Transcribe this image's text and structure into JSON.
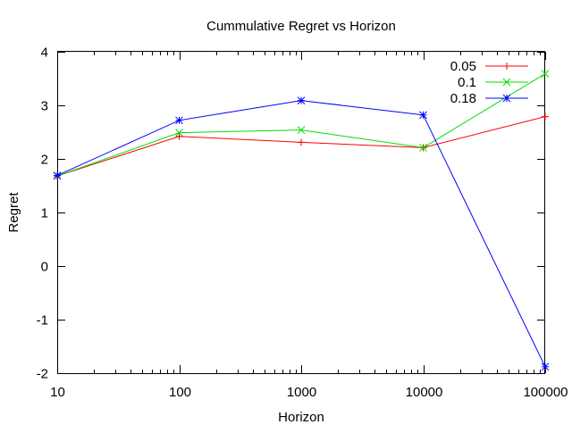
{
  "chart_data": {
    "type": "line",
    "title": "Cummulative Regret vs Horizon",
    "xlabel": "Horizon",
    "ylabel": "Regret",
    "x_scale": "log",
    "x": [
      10,
      100,
      1000,
      10000,
      100000
    ],
    "x_tick_labels": [
      "10",
      "100",
      "1000",
      "10000",
      "100000"
    ],
    "xlim": [
      10,
      100000
    ],
    "ylim": [
      -2,
      4
    ],
    "y_tick_labels": [
      "4",
      "3",
      "2",
      "1",
      "0",
      "-1",
      "-2"
    ],
    "y_ticks": [
      4,
      3,
      2,
      1,
      0,
      -1,
      -2
    ],
    "grid": false,
    "legend_position": "top-right",
    "series": [
      {
        "name": "0.05",
        "color": "#ff0000",
        "marker": "plus",
        "values": [
          1.68,
          2.42,
          2.31,
          2.21,
          2.79
        ]
      },
      {
        "name": "0.1",
        "color": "#00dd00",
        "marker": "cross",
        "values": [
          1.68,
          2.49,
          2.54,
          2.21,
          3.59
        ]
      },
      {
        "name": "0.18",
        "color": "#0000ff",
        "marker": "star",
        "values": [
          1.69,
          2.72,
          3.09,
          2.82,
          -1.88
        ]
      }
    ]
  }
}
